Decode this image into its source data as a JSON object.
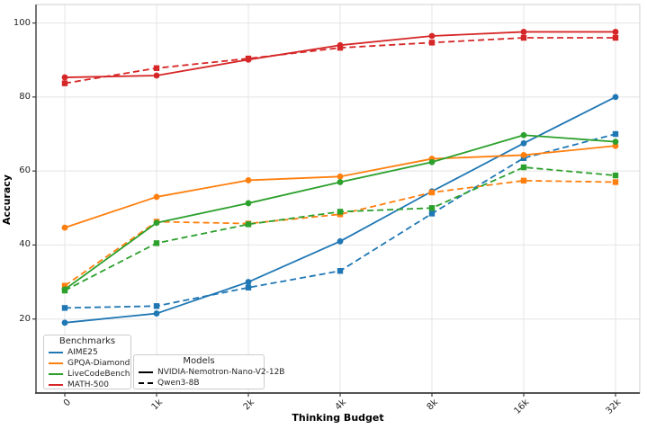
{
  "chart_data": {
    "type": "line",
    "title": "",
    "xlabel": "Thinking Budget",
    "ylabel": "Accuracy",
    "categories": [
      "0",
      "1k",
      "2k",
      "4k",
      "8k",
      "16k",
      "32k"
    ],
    "yticks": [
      20,
      40,
      60,
      80,
      100
    ],
    "ylim": [
      0,
      105
    ],
    "grid": true,
    "legend_position": "lower left",
    "series": [
      {
        "benchmark": "AIME25",
        "model": "NVIDIA-Nemotron-Nano-V2-12B",
        "color": "#1f77b4",
        "line_style": "solid",
        "marker": "circle",
        "values": [
          19.0,
          21.5,
          30.0,
          41.0,
          54.5,
          67.5,
          80.0
        ]
      },
      {
        "benchmark": "AIME25",
        "model": "Qwen3-8B",
        "color": "#1f77b4",
        "line_style": "dashed",
        "marker": "square",
        "values": [
          23.0,
          23.5,
          28.5,
          33.0,
          48.5,
          63.5,
          70.0
        ]
      },
      {
        "benchmark": "GPQA-Diamond",
        "model": "NVIDIA-Nemotron-Nano-V2-12B",
        "color": "#ff7f0e",
        "line_style": "solid",
        "marker": "circle",
        "values": [
          44.7,
          53.0,
          57.5,
          58.5,
          63.3,
          64.3,
          66.8
        ]
      },
      {
        "benchmark": "GPQA-Diamond",
        "model": "Qwen3-8B",
        "color": "#ff7f0e",
        "line_style": "dashed",
        "marker": "square",
        "values": [
          29.0,
          46.3,
          45.8,
          48.3,
          54.2,
          57.4,
          57.0
        ]
      },
      {
        "benchmark": "LiveCodeBench v5",
        "model": "NVIDIA-Nemotron-Nano-V2-12B",
        "color": "#2ca02c",
        "line_style": "solid",
        "marker": "circle",
        "values": [
          28.0,
          46.0,
          51.3,
          57.0,
          62.4,
          69.7,
          67.9
        ]
      },
      {
        "benchmark": "LiveCodeBench v5",
        "model": "Qwen3-8B",
        "color": "#2ca02c",
        "line_style": "dashed",
        "marker": "square",
        "values": [
          27.7,
          40.5,
          45.6,
          49.0,
          50.0,
          61.0,
          58.8
        ]
      },
      {
        "benchmark": "MATH-500",
        "model": "NVIDIA-Nemotron-Nano-V2-12B",
        "color": "#d62728",
        "line_style": "solid",
        "marker": "circle",
        "values": [
          85.3,
          85.8,
          90.1,
          94.0,
          96.5,
          97.6,
          97.6
        ]
      },
      {
        "benchmark": "MATH-500",
        "model": "Qwen3-8B",
        "color": "#d62728",
        "line_style": "dashed",
        "marker": "square",
        "values": [
          83.7,
          87.8,
          90.4,
          93.3,
          94.7,
          96.0,
          96.0
        ]
      }
    ]
  },
  "legend_benchmarks": {
    "title": "Benchmarks",
    "items": [
      {
        "label": "AIME25",
        "color": "#1f77b4"
      },
      {
        "label": "GPQA-Diamond",
        "color": "#ff7f0e"
      },
      {
        "label": "LiveCodeBench v5",
        "color": "#2ca02c"
      },
      {
        "label": "MATH-500",
        "color": "#d62728"
      }
    ]
  },
  "legend_models": {
    "title": "Models",
    "items": [
      {
        "label": "NVIDIA-Nemotron-Nano-V2-12B",
        "line_style": "solid"
      },
      {
        "label": "Qwen3-8B",
        "line_style": "dashed"
      }
    ]
  },
  "colors": {
    "grid": "#e4e4e4",
    "spine_dark": "#3c3c3c",
    "spine_light": "#cfcfcf",
    "background": "#ffffff"
  }
}
